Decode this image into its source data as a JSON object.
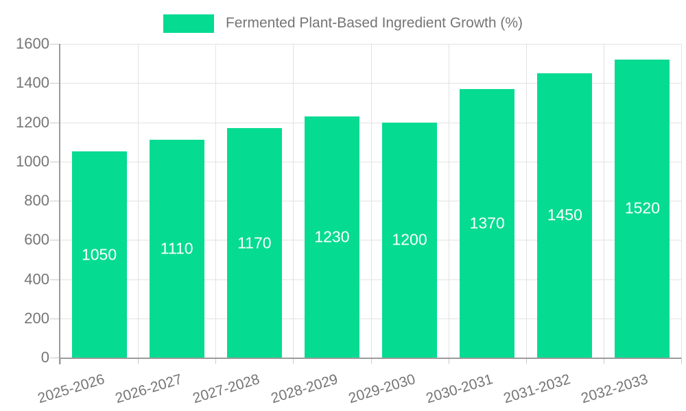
{
  "chart_data": {
    "type": "bar",
    "title": "Fermented Plant-Based Ingredient Growth (%)",
    "categories": [
      "2025-2026",
      "2026-2027",
      "2027-2028",
      "2028-2029",
      "2029-2030",
      "2030-2031",
      "2031-2032",
      "2032-2033"
    ],
    "values": [
      1050,
      1110,
      1170,
      1230,
      1200,
      1370,
      1450,
      1520
    ],
    "xlabel": "",
    "ylabel": "",
    "ylim": [
      0,
      1600
    ],
    "yticks": [
      0,
      200,
      400,
      600,
      800,
      1000,
      1200,
      1400,
      1600
    ],
    "grid": true,
    "legend_position": "top",
    "bar_color": "#06db92",
    "value_label_color": "#ffffff"
  },
  "legend": {
    "label": "Fermented Plant-Based Ingredient Growth (%)"
  },
  "colors": {
    "background": "#ffffff",
    "text": "#757575",
    "axis": "#9b9b9b",
    "grid": "#e2e2e2",
    "tick": "#c9c9c9"
  }
}
